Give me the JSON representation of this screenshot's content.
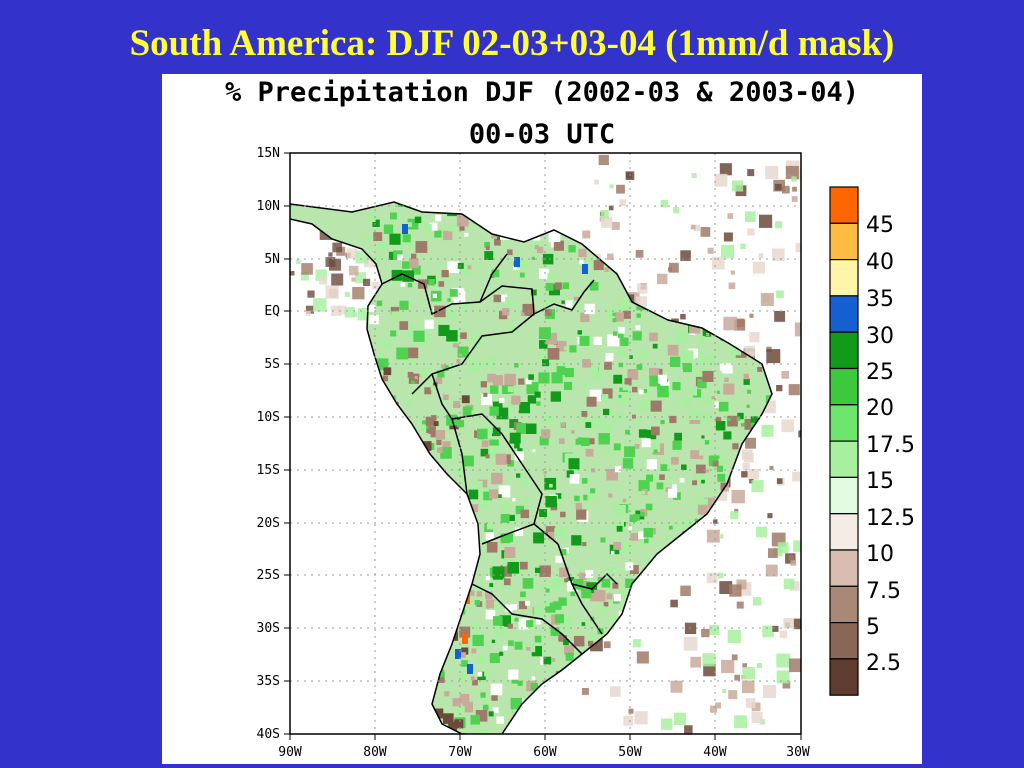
{
  "slide": {
    "title": "South America: DJF 02-03+03-04 (1mm/d mask)"
  },
  "plot": {
    "title_line1": "% Precipitation DJF (2002-03 & 2003-04)",
    "title_line2": "00-03 UTC"
  },
  "map": {
    "lat_labels": [
      "15N",
      "10N",
      "5N",
      "EQ",
      "5S",
      "10S",
      "15S",
      "20S",
      "25S",
      "30S",
      "35S",
      "40S"
    ],
    "lon_labels": [
      "90W",
      "80W",
      "70W",
      "60W",
      "50W",
      "40W",
      "30W"
    ],
    "colors": {
      "background": "#3333cc",
      "title": "#ffff33",
      "brown_dark": "#6b4a3a",
      "brown": "#a07a68",
      "brown_light": "#c8aa9a",
      "green": "#4fd24f",
      "green_light": "#a8f0a0",
      "green_dark": "#129a1a",
      "blue": "#1560d0",
      "orange": "#ff6600"
    }
  },
  "colorbar": {
    "labels": [
      "45",
      "40",
      "35",
      "30",
      "25",
      "20",
      "17.5",
      "15",
      "12.5",
      "10",
      "7.5",
      "5",
      "2.5"
    ],
    "colors": [
      "#ff6600",
      "#ffbb44",
      "#fff5a8",
      "#1560d0",
      "#129a1a",
      "#3ec83e",
      "#6ee66e",
      "#a8f0a0",
      "#e2fbe0",
      "#f6ece6",
      "#d8bdb0",
      "#aa8878",
      "#8a6656",
      "#603c30"
    ]
  }
}
